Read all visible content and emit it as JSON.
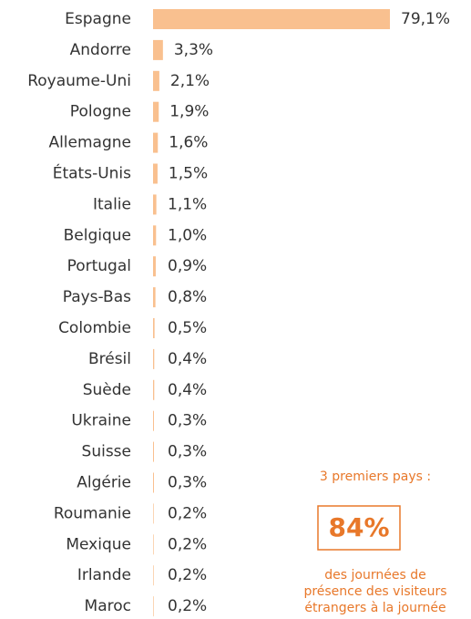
{
  "chart_data": {
    "type": "bar",
    "orientation": "horizontal",
    "categories": [
      "Espagne",
      "Andorre",
      "Royaume-Uni",
      "Pologne",
      "Allemagne",
      "États-Unis",
      "Italie",
      "Belgique",
      "Portugal",
      "Pays-Bas",
      "Colombie",
      "Brésil",
      "Suède",
      "Ukraine",
      "Suisse",
      "Algérie",
      "Roumanie",
      "Mexique",
      "Irlande",
      "Maroc"
    ],
    "values": [
      79.1,
      3.3,
      2.1,
      1.9,
      1.6,
      1.5,
      1.1,
      1.0,
      0.9,
      0.8,
      0.5,
      0.4,
      0.4,
      0.3,
      0.3,
      0.3,
      0.2,
      0.2,
      0.2,
      0.2
    ],
    "value_labels": [
      "79,1%",
      "3,3%",
      "2,1%",
      "1,9%",
      "1,6%",
      "1,5%",
      "1,1%",
      "1,0%",
      "0,9%",
      "0,8%",
      "0,5%",
      "0,4%",
      "0,4%",
      "0,3%",
      "0,3%",
      "0,3%",
      "0,2%",
      "0,2%",
      "0,2%",
      "0,2%"
    ],
    "color": "#f9c08f",
    "annotation": {
      "heading": "3 premiers pays :",
      "value": 84,
      "value_label": "84%",
      "lines": [
        "des journées de",
        "présence des visiteurs",
        "étrangers à la journée"
      ]
    }
  }
}
